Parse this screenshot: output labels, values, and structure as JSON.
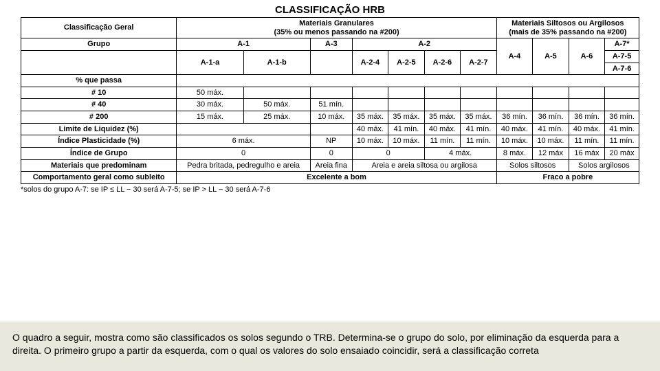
{
  "title": "CLASSIFICAÇÃO HRB",
  "headers": {
    "h_classif_geral": "Classificação Geral",
    "h_granulares": "Materiais Granulares\n(35% ou menos passando na #200)",
    "h_siltosos": "Materiais Siltosos ou Argilosos\n(mais de 35% passando na #200)",
    "h_grupo": "Grupo",
    "g_a1": "A-1",
    "g_a3": "A-3",
    "g_a2": "A-2",
    "g_a4": "A-4",
    "g_a5": "A-5",
    "g_a6": "A-6",
    "g_a7": "A-7*",
    "sg_a1a": "A-1-a",
    "sg_a1b": "A-1-b",
    "sg_a24": "A-2-4",
    "sg_a25": "A-2-5",
    "sg_a26": "A-2-6",
    "sg_a27": "A-2-7",
    "sg_a75": "A-7-5",
    "sg_a76": "A-7-6"
  },
  "rows": {
    "pct_passa": "% que passa",
    "n10": "# 10",
    "n40": "# 40",
    "n200": "# 200",
    "ll": "Limite de Liquidez (%)",
    "ip": "Índice Plasticidade (%)",
    "ig": "Índice de Grupo",
    "mat": "Materiais que predominam",
    "comp": "Comportamento geral como subleito"
  },
  "vals": {
    "n10_a1a": "50 máx.",
    "n40_a1a": "30 máx.",
    "n40_a1b": "50 máx.",
    "n40_a3": "51 mín.",
    "n200_a1a": "15 máx.",
    "n200_a1b": "25 máx.",
    "n200_a3": "10 máx.",
    "n200_a24": "35 máx.",
    "n200_a25": "35 máx.",
    "n200_a26": "35 máx.",
    "n200_a27": "35 máx.",
    "n200_a4": "36 mín.",
    "n200_a5": "36 mín.",
    "n200_a6": "36 mín.",
    "n200_a7": "36 mín.",
    "ll_a24": "40 máx.",
    "ll_a25": "41 mín.",
    "ll_a26": "40 máx.",
    "ll_a27": "41 mín.",
    "ll_a4": "40 máx.",
    "ll_a5": "41 mín.",
    "ll_a6": "40 máx.",
    "ll_a7": "41 mín.",
    "ip_a1": "6 máx.",
    "ip_a3": "NP",
    "ip_a24": "10 máx.",
    "ip_a25": "10 máx.",
    "ip_a26": "11 mín.",
    "ip_a27": "11 mín.",
    "ip_a4": "10 máx.",
    "ip_a5": "10 máx.",
    "ip_a6": "11 mín.",
    "ip_a7": "11 mín.",
    "ig_a1": "0",
    "ig_a3": "0",
    "ig_a2_1": "0",
    "ig_a2_2": "4 máx.",
    "ig_a4": "8 máx.",
    "ig_a5": "12 máx",
    "ig_a6": "16 máx",
    "ig_a7": "20 máx",
    "mat_a1": "Pedra britada, pedregulho e areia",
    "mat_a3": "Areia fina",
    "mat_a2": "Areia e areia siltosa ou argilosa",
    "mat_silt": "Solos siltosos",
    "mat_arg": "Solos argilosos",
    "comp_a": "Excelente a bom",
    "comp_b": "Fraco a pobre"
  },
  "footnote": "*solos do grupo A-7: se IP ≤ LL − 30 será A-7-5; se IP > LL − 30 será A-7-6",
  "caption": "O quadro a seguir, mostra como são classificados os solos segundo o TRB. Determina-se o grupo do solo, por eliminação da esquerda para a direita. O primeiro grupo a partir da esquerda, com o qual os valores do solo  ensaiado coincidir, será a classificação correta"
}
